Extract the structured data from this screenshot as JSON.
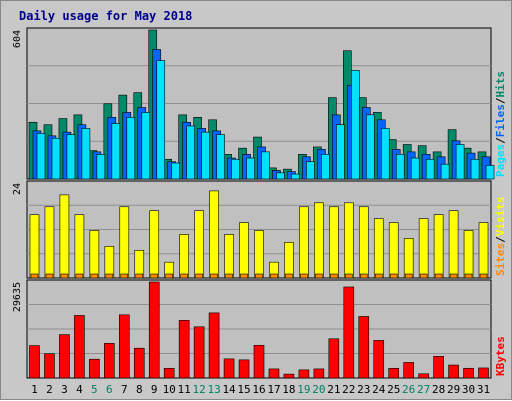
{
  "title": "Daily usage for May 2018",
  "colors": {
    "pages": "#00e0ff",
    "files": "#0066ff",
    "hits": "#008a6a",
    "visits": "#ffff00",
    "sites": "#ff8800",
    "kbytes": "#ff0000",
    "weekday": "#000000",
    "weekend": "#008060",
    "panel": "#c0c0c0",
    "grid": "#909090"
  },
  "chart_data": {
    "type": "bar",
    "title": "Daily usage for May 2018",
    "categories": [
      "1",
      "2",
      "3",
      "4",
      "5",
      "6",
      "7",
      "8",
      "9",
      "10",
      "11",
      "12",
      "13",
      "14",
      "15",
      "16",
      "17",
      "18",
      "19",
      "20",
      "21",
      "22",
      "23",
      "24",
      "25",
      "26",
      "27",
      "28",
      "29",
      "30",
      "31"
    ],
    "weekend_days": [
      "5",
      "6",
      "12",
      "13",
      "19",
      "20",
      "26",
      "27"
    ],
    "panels": [
      {
        "name": "hits-files-pages",
        "ymax_label": "604",
        "ylim": [
          0,
          604
        ],
        "legend": [
          {
            "label": "Pages",
            "color": "#00e0ff"
          },
          {
            "label": "Files",
            "color": "#0066ff"
          },
          {
            "label": "Hits",
            "color": "#008a6a"
          }
        ],
        "series": [
          {
            "name": "Hits",
            "values": [
              230,
              220,
              245,
              260,
              115,
              305,
              340,
              350,
              604,
              80,
              260,
              250,
              240,
              100,
              125,
              170,
              45,
              40,
              100,
              130,
              330,
              520,
              330,
              270,
              160,
              140,
              135,
              110,
              200,
              125,
              110
            ]
          },
          {
            "name": "Files",
            "values": [
              195,
              175,
              190,
              220,
              110,
              250,
              270,
              290,
              525,
              70,
              230,
              205,
              195,
              85,
              100,
              130,
              35,
              30,
              90,
              120,
              260,
              380,
              290,
              240,
              120,
              110,
              100,
              90,
              155,
              105,
              90
            ]
          },
          {
            "name": "Pages",
            "values": [
              185,
              165,
              180,
              205,
              100,
              225,
              250,
              270,
              480,
              65,
              215,
              190,
              180,
              80,
              85,
              110,
              25,
              20,
              70,
              100,
              220,
              440,
              260,
              205,
              100,
              85,
              80,
              60,
              140,
              80,
              55
            ]
          }
        ]
      },
      {
        "name": "visits-sites",
        "ymax_label": "24",
        "ylim": [
          0,
          24
        ],
        "legend": [
          {
            "label": "Sites",
            "color": "#ff8800"
          },
          {
            "label": "Visits",
            "color": "#ffff00"
          }
        ],
        "series": [
          {
            "name": "Visits",
            "values": [
              16,
              18,
              21,
              16,
              12,
              8,
              18,
              7,
              17,
              4,
              11,
              17,
              22,
              11,
              14,
              12,
              4,
              9,
              18,
              19,
              18,
              19,
              18,
              15,
              14,
              10,
              15,
              16,
              17,
              12,
              14
            ]
          },
          {
            "name": "Sites",
            "values": [
              1,
              1,
              1,
              1,
              1,
              1,
              1,
              1,
              1,
              1,
              1,
              1,
              1,
              1,
              1,
              1,
              1,
              1,
              1,
              1,
              1,
              1,
              1,
              1,
              1,
              1,
              1,
              1,
              1,
              1,
              1
            ]
          }
        ]
      },
      {
        "name": "kbytes",
        "ymax_label": "29635",
        "ylim": [
          0,
          29635
        ],
        "legend": [
          {
            "label": "KBytes",
            "color": "#ff0000"
          }
        ],
        "series": [
          {
            "name": "KBytes",
            "values": [
              10000,
              7500,
              13400,
              19300,
              5800,
              10700,
              19500,
              9200,
              29635,
              3000,
              17800,
              15800,
              20100,
              5900,
              5600,
              10100,
              2800,
              1200,
              2500,
              2800,
              12100,
              28100,
              19000,
              11600,
              3000,
              4800,
              1300,
              6700,
              4000,
              3000,
              3100
            ]
          }
        ]
      }
    ]
  }
}
